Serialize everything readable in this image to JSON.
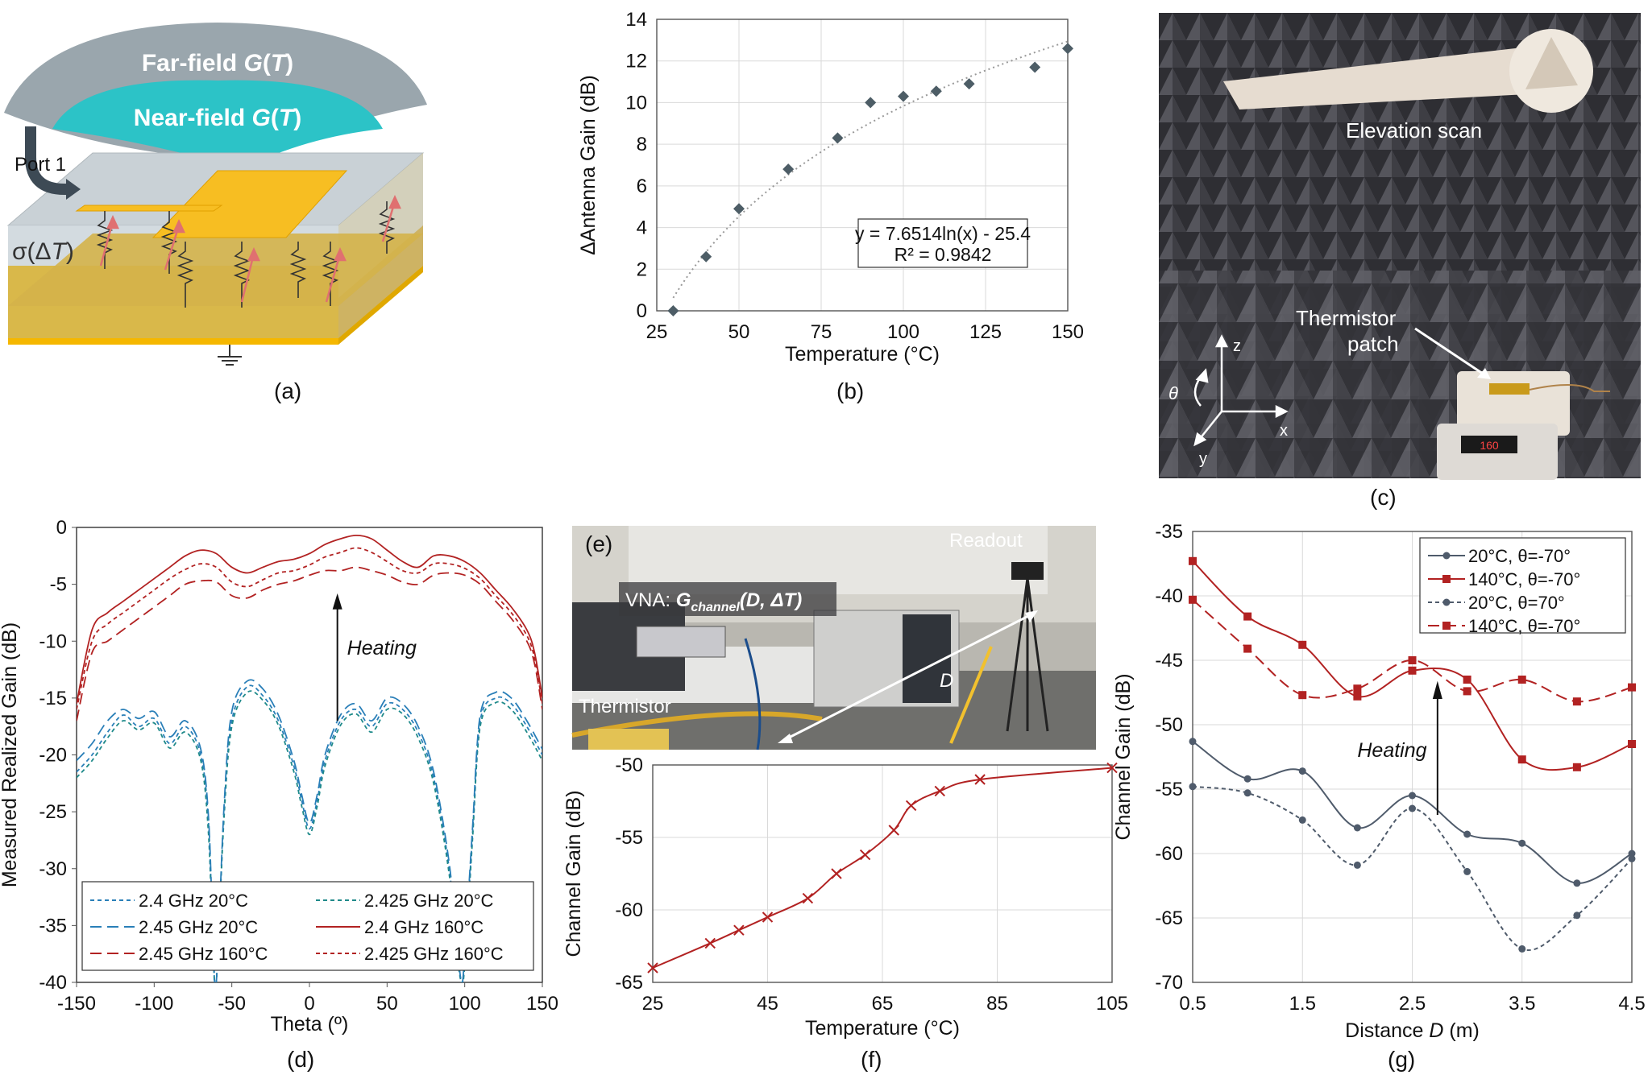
{
  "panel_labels": {
    "a": "(a)",
    "b": "(b)",
    "c": "(c)",
    "d": "(d)",
    "e": "(e)",
    "f": "(f)",
    "g": "(g)"
  },
  "schematic": {
    "far_field_pre": "Far-field ",
    "far_field_g": "G",
    "far_field_t": "T",
    "near_field_pre": "Near-field ",
    "near_field_g": "G",
    "near_field_t": "T",
    "port": "Port 1",
    "sigma_pre": "σ(Δ",
    "sigma_t": "T",
    "sigma_post": ")"
  },
  "photo_c": {
    "elevation": "Elevation scan",
    "thermistor": "Thermistor",
    "patch": "patch",
    "axis_z": "z",
    "axis_x": "x",
    "axis_y": "y",
    "theta": "θ",
    "display": "160"
  },
  "photo_e": {
    "readout": "Readout",
    "vna_pre": "VNA: ",
    "vna_g": "G",
    "vna_sub": "channel",
    "vna_args": "(D, ΔT)",
    "thermistor": "Thermistor",
    "distance": "D"
  },
  "colors": {
    "red": "#b22222",
    "blue": "#2a7fb8",
    "slate": "#4f5b6b",
    "marker": "#4d5d66",
    "teal": "#2ec4c4",
    "gold": "#f5b700"
  },
  "chart_data": [
    {
      "id": "b",
      "type": "scatter",
      "xlabel": "Temperature (°C)",
      "ylabel": "ΔAntenna Gain (dB)",
      "xlim": [
        25,
        150
      ],
      "ylim": [
        0,
        14
      ],
      "xticks": [
        "25",
        "50",
        "75",
        "100",
        "125",
        "150"
      ],
      "yticks": [
        "0",
        "2",
        "4",
        "6",
        "8",
        "10",
        "12",
        "14"
      ],
      "grid": true,
      "points": [
        [
          30,
          0
        ],
        [
          40,
          2.6
        ],
        [
          50,
          4.9
        ],
        [
          65,
          6.8
        ],
        [
          80,
          8.3
        ],
        [
          90,
          10.0
        ],
        [
          100,
          10.3
        ],
        [
          110,
          10.55
        ],
        [
          120,
          10.9
        ],
        [
          140,
          11.7
        ],
        [
          150,
          12.6
        ]
      ],
      "trendline": {
        "type": "log",
        "a": 7.6514,
        "b": -25.4
      },
      "equation": "y = 7.6514ln(x) - 25.4",
      "r2": "R² = 0.9842"
    },
    {
      "id": "d",
      "type": "line",
      "xlabel": "Theta (º)",
      "ylabel": "Measured Realized Gain (dB)",
      "xlim": [
        -150,
        150
      ],
      "ylim": [
        -40,
        0
      ],
      "xticks": [
        "-150",
        "-100",
        "-50",
        "0",
        "50",
        "100",
        "150"
      ],
      "yticks": [
        "0",
        "-5",
        "-10",
        "-15",
        "-20",
        "-25",
        "-30",
        "-35",
        "-40"
      ],
      "grid": false,
      "annotation": "Heating",
      "series": [
        {
          "name": "2.4 GHz 20°C",
          "color": "#2a7fb8",
          "dash": "short",
          "x": [
            -150,
            -140,
            -130,
            -120,
            -110,
            -100,
            -90,
            -80,
            -70,
            -65,
            -62,
            -60,
            -55,
            -50,
            -40,
            -30,
            -20,
            -10,
            -5,
            0,
            5,
            10,
            20,
            30,
            40,
            50,
            60,
            70,
            80,
            90,
            95,
            98,
            100,
            105,
            110,
            120,
            130,
            140,
            150
          ],
          "y": [
            -21.5,
            -20,
            -18,
            -16.5,
            -17.5,
            -16.8,
            -19,
            -17.5,
            -20,
            -26,
            -37,
            -40,
            -25,
            -17,
            -14,
            -14.8,
            -17,
            -21,
            -24,
            -26.5,
            -24,
            -20.5,
            -17,
            -16,
            -17.5,
            -15.5,
            -16,
            -18,
            -22,
            -30,
            -37,
            -40,
            -38,
            -27,
            -17,
            -15,
            -15.5,
            -17.5,
            -20
          ]
        },
        {
          "name": "2.425 GHz 20°C",
          "color": "#1f8a8a",
          "dash": "short",
          "x": [
            -150,
            -140,
            -130,
            -120,
            -110,
            -100,
            -90,
            -80,
            -70,
            -65,
            -62,
            -60,
            -55,
            -50,
            -40,
            -30,
            -20,
            -10,
            -5,
            0,
            5,
            10,
            20,
            30,
            40,
            50,
            60,
            70,
            80,
            90,
            95,
            98,
            100,
            105,
            110,
            120,
            130,
            140,
            150
          ],
          "y": [
            -22,
            -20.5,
            -18.5,
            -17,
            -17.8,
            -17.2,
            -19.4,
            -18,
            -20.5,
            -27,
            -37.5,
            -40,
            -25.5,
            -17.5,
            -14.5,
            -15.2,
            -17.4,
            -21.5,
            -24.5,
            -27,
            -24.5,
            -21,
            -17.4,
            -16.4,
            -18,
            -16,
            -16.4,
            -18.5,
            -22.5,
            -30.5,
            -37.5,
            -40,
            -38.5,
            -27.5,
            -17.5,
            -15.4,
            -16,
            -18,
            -20.5
          ]
        },
        {
          "name": "2.45 GHz 20°C",
          "color": "#2a7fb8",
          "dash": "long",
          "x": [
            -150,
            -140,
            -130,
            -120,
            -110,
            -100,
            -90,
            -80,
            -70,
            -65,
            -62,
            -60,
            -55,
            -50,
            -40,
            -30,
            -20,
            -10,
            -5,
            0,
            5,
            10,
            20,
            30,
            40,
            50,
            60,
            70,
            80,
            90,
            95,
            98,
            100,
            105,
            110,
            120,
            130,
            140,
            150
          ],
          "y": [
            -20.5,
            -19,
            -17,
            -16,
            -16.8,
            -16.2,
            -18.4,
            -17,
            -19.5,
            -25.5,
            -36.5,
            -40,
            -24.5,
            -16.2,
            -13.5,
            -14.2,
            -16.5,
            -20.5,
            -23.5,
            -26,
            -23.5,
            -20,
            -16.5,
            -15.5,
            -17,
            -15,
            -15.5,
            -17.5,
            -21.5,
            -29.5,
            -36.5,
            -40,
            -37.5,
            -26.5,
            -16.5,
            -14.5,
            -15,
            -17,
            -19.5
          ]
        },
        {
          "name": "2.4 GHz 160°C",
          "color": "#b22222",
          "dash": "solid",
          "x": [
            -150,
            -140,
            -130,
            -120,
            -110,
            -100,
            -90,
            -80,
            -70,
            -60,
            -50,
            -40,
            -30,
            -20,
            -10,
            0,
            10,
            20,
            30,
            40,
            50,
            60,
            70,
            80,
            90,
            100,
            110,
            120,
            130,
            140,
            145,
            150
          ],
          "y": [
            -15.5,
            -9,
            -7.5,
            -6.5,
            -5.5,
            -4.5,
            -3.5,
            -2.5,
            -2,
            -2.3,
            -3.5,
            -4,
            -3.5,
            -3,
            -2.8,
            -2.3,
            -1.5,
            -1,
            -0.7,
            -1,
            -2,
            -3,
            -3.5,
            -2.5,
            -2.5,
            -3,
            -4,
            -5.5,
            -7,
            -9,
            -11,
            -15
          ]
        },
        {
          "name": "2.425 GHz 160°C",
          "color": "#b22222",
          "dash": "short",
          "x": [
            -150,
            -140,
            -130,
            -120,
            -110,
            -100,
            -90,
            -80,
            -70,
            -60,
            -50,
            -40,
            -30,
            -20,
            -10,
            0,
            10,
            20,
            30,
            40,
            50,
            60,
            70,
            80,
            90,
            100,
            110,
            120,
            130,
            140,
            145,
            150
          ],
          "y": [
            -16,
            -10,
            -8.5,
            -7.5,
            -6.5,
            -5.5,
            -4.5,
            -3.7,
            -3.2,
            -3.5,
            -4.8,
            -5.2,
            -4.6,
            -4,
            -3.8,
            -3.3,
            -2.6,
            -2.2,
            -1.8,
            -2.2,
            -3,
            -3.8,
            -4,
            -3.2,
            -3.2,
            -3.6,
            -4.5,
            -6,
            -7.5,
            -9.5,
            -11.5,
            -15.5
          ]
        },
        {
          "name": "2.45 GHz 160°C",
          "color": "#b22222",
          "dash": "long",
          "x": [
            -150,
            -140,
            -130,
            -120,
            -110,
            -100,
            -90,
            -80,
            -70,
            -60,
            -50,
            -40,
            -30,
            -20,
            -10,
            0,
            10,
            20,
            30,
            40,
            50,
            60,
            70,
            80,
            90,
            100,
            110,
            120,
            130,
            140,
            145,
            150
          ],
          "y": [
            -17,
            -11,
            -10,
            -9,
            -8,
            -7,
            -6,
            -5,
            -4.7,
            -4.8,
            -6,
            -6.2,
            -5.5,
            -5,
            -4.7,
            -4.2,
            -3.8,
            -3.8,
            -3.5,
            -3.8,
            -4.2,
            -4.8,
            -5,
            -4.2,
            -4,
            -4.2,
            -5,
            -6.5,
            -8,
            -10,
            -12,
            -16
          ]
        }
      ]
    },
    {
      "id": "f",
      "type": "line",
      "xlabel": "Temperature (°C)",
      "ylabel": "Channel Gain (dB)",
      "xlim": [
        25,
        105
      ],
      "ylim": [
        -65,
        -50
      ],
      "xticks": [
        "25",
        "45",
        "65",
        "85",
        "105"
      ],
      "yticks": [
        "-50",
        "-55",
        "-60",
        "-65"
      ],
      "grid": true,
      "series": [
        {
          "name": "",
          "color": "#b22222",
          "x": [
            25,
            35,
            40,
            45,
            52,
            57,
            62,
            67,
            70,
            75,
            82,
            105
          ],
          "y": [
            -64,
            -62.3,
            -61.4,
            -60.5,
            -59.2,
            -57.5,
            -56.2,
            -54.5,
            -52.8,
            -51.8,
            -51,
            -50.2
          ]
        }
      ]
    },
    {
      "id": "g",
      "type": "line",
      "xlabel_pre": "Distance ",
      "xlabel_var": "D",
      "xlabel_post": " (m)",
      "ylabel": "Channel Gain (dB)",
      "xlim": [
        0.5,
        4.5
      ],
      "ylim": [
        -70,
        -35
      ],
      "xticks": [
        "0.5",
        "1.5",
        "2.5",
        "3.5",
        "4.5"
      ],
      "yticks": [
        "-35",
        "-40",
        "-45",
        "-50",
        "-55",
        "-60",
        "-65",
        "-70"
      ],
      "grid": true,
      "annotation": "Heating",
      "series": [
        {
          "name": "20°C, θ=-70°",
          "color": "#4f5b6b",
          "dash": "solid",
          "marker": "circle",
          "x": [
            0.5,
            1,
            1.5,
            2,
            2.5,
            3,
            3.5,
            4,
            4.5
          ],
          "y": [
            -51.3,
            -54.2,
            -53.6,
            -58,
            -55.5,
            -58.5,
            -59.2,
            -62.3,
            -60
          ]
        },
        {
          "name": "140°C, θ=-70°",
          "color": "#b22222",
          "dash": "solid",
          "marker": "square",
          "x": [
            0.5,
            1,
            1.5,
            2,
            2.5,
            3,
            3.5,
            4,
            4.5
          ],
          "y": [
            -37.3,
            -41.6,
            -43.8,
            -47.8,
            -45.8,
            -46.5,
            -52.7,
            -53.3,
            -51.5
          ]
        },
        {
          "name": "20°C, θ=70°",
          "color": "#4f5b6b",
          "dash": "short",
          "marker": "circle",
          "x": [
            0.5,
            1,
            1.5,
            2,
            2.5,
            3,
            3.5,
            4,
            4.5
          ],
          "y": [
            -54.8,
            -55.3,
            -57.4,
            -60.9,
            -56.5,
            -61.4,
            -67.4,
            -64.8,
            -60.4
          ]
        },
        {
          "name": "140°C, θ=-70°",
          "color": "#b22222",
          "dash": "long",
          "marker": "square",
          "x": [
            0.5,
            1,
            1.5,
            2,
            2.5,
            3,
            3.5,
            4,
            4.5
          ],
          "y": [
            -40.3,
            -44.1,
            -47.7,
            -47.2,
            -45,
            -47.4,
            -46.5,
            -48.2,
            -47.1
          ]
        }
      ]
    }
  ]
}
